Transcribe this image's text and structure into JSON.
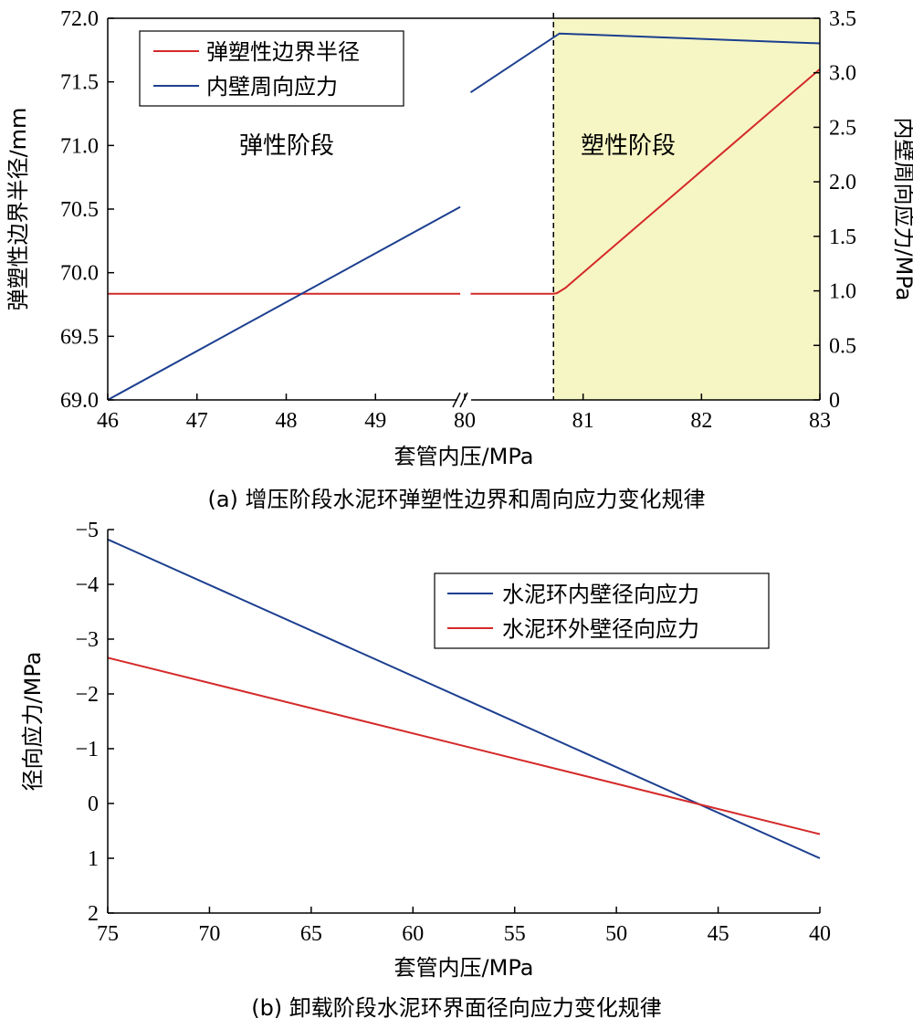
{
  "chart_data": [
    {
      "id": "a",
      "type": "line",
      "caption": "(a) 增压阶段水泥环弹塑性边界和周向应力变化规律",
      "xlabel": "套管内压/MPa",
      "ylabel_left": "弹塑性边界半径/mm",
      "ylabel_right": "内壁周向应力/MPa",
      "x_segments": [
        {
          "range": [
            46,
            50
          ],
          "ticks": [
            "46",
            "47",
            "48",
            "49"
          ]
        },
        {
          "range": [
            80,
            83
          ],
          "ticks": [
            "80",
            "81",
            "82",
            "83"
          ]
        }
      ],
      "axis_break": true,
      "ylim_left": [
        69.0,
        72.0
      ],
      "yticks_left": [
        "69.0",
        "69.5",
        "70.0",
        "70.5",
        "71.0",
        "71.5",
        "72.0"
      ],
      "ylim_right": [
        0,
        3.5
      ],
      "yticks_right": [
        "0",
        "0.5",
        "1.0",
        "1.5",
        "2.0",
        "2.5",
        "3.0",
        "3.5"
      ],
      "stage_labels": [
        "弹性阶段",
        "塑性阶段"
      ],
      "plastic_start_x": 80.75,
      "shaded_color": "#f6f6c4",
      "series": [
        {
          "name": "弹塑性边界半径",
          "color": "#d42a2a",
          "axis": "left",
          "points": [
            [
              46,
              69.835
            ],
            [
              49.95,
              69.835
            ],
            [
              80.05,
              69.835
            ],
            [
              80.75,
              69.835
            ],
            [
              80.78,
              69.84
            ],
            [
              80.85,
              69.88
            ],
            [
              83,
              71.6
            ]
          ]
        },
        {
          "name": "内壁周向应力",
          "color": "#1c3f8f",
          "axis": "right",
          "points": [
            [
              46,
              0
            ],
            [
              49.95,
              1.77
            ],
            [
              80.05,
              2.82
            ],
            [
              80.8,
              3.36
            ],
            [
              83,
              3.27
            ]
          ]
        }
      ]
    },
    {
      "id": "b",
      "type": "line",
      "caption": "(b) 卸载阶段水泥环界面径向应力变化规律",
      "xlabel": "套管内压/MPa",
      "ylabel": "径向应力/MPa",
      "xlim": [
        75,
        40
      ],
      "xticks": [
        "75",
        "70",
        "65",
        "60",
        "55",
        "50",
        "45",
        "40"
      ],
      "ylim": [
        -5,
        2
      ],
      "yticks": [
        "−5",
        "−4",
        "−3",
        "−2",
        "−1",
        "0",
        "1",
        "2"
      ],
      "series": [
        {
          "name": "水泥环内壁径向应力",
          "color": "#1c3f8f",
          "points": [
            [
              75,
              -4.82
            ],
            [
              40,
              1.0
            ]
          ]
        },
        {
          "name": "水泥环外壁径向应力",
          "color": "#d42a2a",
          "points": [
            [
              75,
              -2.66
            ],
            [
              40,
              0.56
            ]
          ]
        }
      ]
    }
  ]
}
